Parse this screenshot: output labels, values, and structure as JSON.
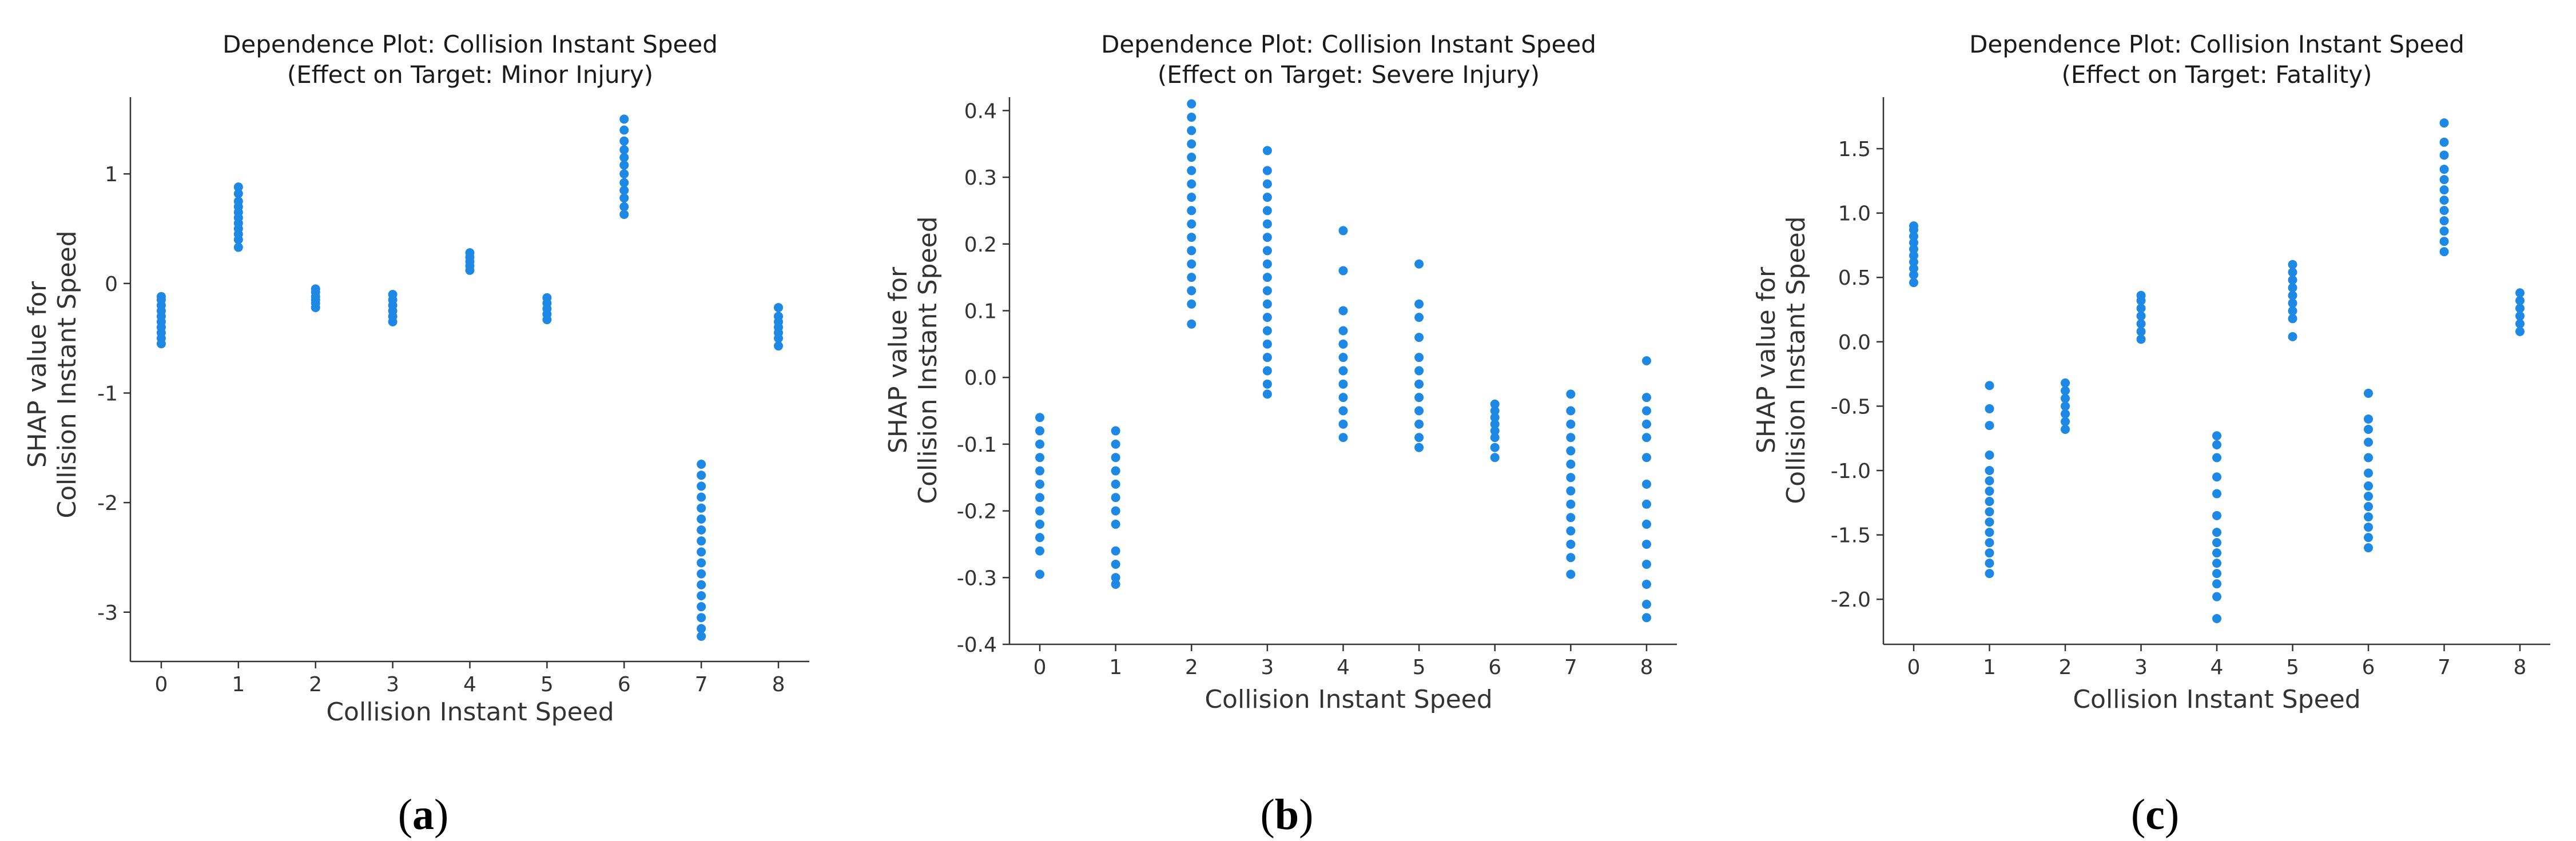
{
  "colors": {
    "point": "#1e88e5",
    "axis": "#333333"
  },
  "chart_data": [
    {
      "type": "scatter",
      "title_line1": "Dependence Plot: Collision Instant Speed",
      "title_line2": "(Effect on Target: Minor Injury)",
      "xlabel": "Collision Instant Speed",
      "ylabel_line1": "SHAP value for",
      "ylabel_line2": "Collision Instant Speed",
      "xlim": [
        -0.4,
        8.4
      ],
      "ylim": [
        -3.45,
        1.7
      ],
      "xticks": [
        0,
        1,
        2,
        3,
        4,
        5,
        6,
        7,
        8
      ],
      "yticks": [
        -3,
        -2,
        -1,
        0,
        1
      ],
      "caption_open": "(",
      "caption_letter": "a",
      "caption_close": ")",
      "clusters": [
        {
          "x": 0,
          "values": [
            -0.55,
            -0.5,
            -0.45,
            -0.4,
            -0.35,
            -0.3,
            -0.25,
            -0.2,
            -0.15,
            -0.12
          ]
        },
        {
          "x": 1,
          "values": [
            0.33,
            0.4,
            0.45,
            0.5,
            0.55,
            0.6,
            0.65,
            0.7,
            0.75,
            0.82,
            0.88
          ]
        },
        {
          "x": 2,
          "values": [
            -0.22,
            -0.18,
            -0.15,
            -0.12,
            -0.08,
            -0.05
          ]
        },
        {
          "x": 3,
          "values": [
            -0.35,
            -0.3,
            -0.25,
            -0.2,
            -0.15,
            -0.1
          ]
        },
        {
          "x": 4,
          "values": [
            0.12,
            0.16,
            0.2,
            0.24,
            0.28
          ]
        },
        {
          "x": 5,
          "values": [
            -0.33,
            -0.28,
            -0.23,
            -0.18,
            -0.13
          ]
        },
        {
          "x": 6,
          "values": [
            0.63,
            0.7,
            0.78,
            0.85,
            0.92,
            1.0,
            1.08,
            1.15,
            1.22,
            1.3,
            1.4,
            1.5
          ]
        },
        {
          "x": 7,
          "values": [
            -3.22,
            -3.15,
            -3.05,
            -2.95,
            -2.85,
            -2.75,
            -2.65,
            -2.55,
            -2.45,
            -2.35,
            -2.25,
            -2.15,
            -2.05,
            -1.95,
            -1.85,
            -1.75,
            -1.65
          ]
        },
        {
          "x": 8,
          "values": [
            -0.57,
            -0.5,
            -0.45,
            -0.4,
            -0.35,
            -0.3,
            -0.22
          ]
        }
      ]
    },
    {
      "type": "scatter",
      "title_line1": "Dependence Plot: Collision Instant Speed",
      "title_line2": "(Effect on Target: Severe Injury)",
      "xlabel": "Collision Instant Speed",
      "ylabel_line1": "SHAP value for",
      "ylabel_line2": "Collision Instant Speed",
      "xlim": [
        -0.4,
        8.4
      ],
      "ylim": [
        -0.4,
        0.42
      ],
      "xticks": [
        0,
        1,
        2,
        3,
        4,
        5,
        6,
        7,
        8
      ],
      "yticks": [
        -0.4,
        -0.3,
        -0.2,
        -0.1,
        0.0,
        0.1,
        0.2,
        0.3,
        0.4
      ],
      "ytick_labels": [
        "-0.4",
        "-0.3",
        "-0.2",
        "-0.1",
        "0.0",
        "0.1",
        "0.2",
        "0.3",
        "0.4"
      ],
      "caption_open": "(",
      "caption_letter": "b",
      "caption_close": ")",
      "clusters": [
        {
          "x": 0,
          "values": [
            -0.295,
            -0.26,
            -0.24,
            -0.22,
            -0.2,
            -0.18,
            -0.16,
            -0.14,
            -0.12,
            -0.1,
            -0.08,
            -0.06
          ]
        },
        {
          "x": 1,
          "values": [
            -0.31,
            -0.3,
            -0.28,
            -0.26,
            -0.22,
            -0.2,
            -0.18,
            -0.16,
            -0.14,
            -0.12,
            -0.1,
            -0.08
          ]
        },
        {
          "x": 2,
          "values": [
            0.08,
            0.11,
            0.13,
            0.15,
            0.17,
            0.19,
            0.21,
            0.23,
            0.25,
            0.27,
            0.29,
            0.31,
            0.33,
            0.35,
            0.37,
            0.39,
            0.41
          ]
        },
        {
          "x": 3,
          "values": [
            -0.025,
            -0.01,
            0.01,
            0.03,
            0.05,
            0.07,
            0.09,
            0.11,
            0.13,
            0.15,
            0.17,
            0.19,
            0.21,
            0.23,
            0.25,
            0.27,
            0.29,
            0.31,
            0.34
          ]
        },
        {
          "x": 4,
          "values": [
            -0.09,
            -0.07,
            -0.05,
            -0.03,
            -0.01,
            0.01,
            0.03,
            0.05,
            0.07,
            0.1,
            0.16,
            0.22
          ]
        },
        {
          "x": 5,
          "values": [
            -0.105,
            -0.09,
            -0.07,
            -0.05,
            -0.03,
            -0.01,
            0.01,
            0.03,
            0.06,
            0.09,
            0.11,
            0.17
          ]
        },
        {
          "x": 6,
          "values": [
            -0.12,
            -0.105,
            -0.09,
            -0.08,
            -0.07,
            -0.06,
            -0.05,
            -0.04
          ]
        },
        {
          "x": 7,
          "values": [
            -0.295,
            -0.27,
            -0.25,
            -0.23,
            -0.21,
            -0.19,
            -0.17,
            -0.15,
            -0.13,
            -0.11,
            -0.09,
            -0.07,
            -0.05,
            -0.025
          ]
        },
        {
          "x": 8,
          "values": [
            -0.36,
            -0.34,
            -0.31,
            -0.28,
            -0.25,
            -0.22,
            -0.19,
            -0.16,
            -0.12,
            -0.09,
            -0.07,
            -0.05,
            -0.03,
            0.025
          ]
        }
      ]
    },
    {
      "type": "scatter",
      "title_line1": "Dependence Plot: Collision Instant Speed",
      "title_line2": "(Effect on Target: Fatality)",
      "xlabel": "Collision Instant Speed",
      "ylabel_line1": "SHAP value for",
      "ylabel_line2": "Collision Instant Speed",
      "xlim": [
        -0.4,
        8.4
      ],
      "ylim": [
        -2.35,
        1.9
      ],
      "xticks": [
        0,
        1,
        2,
        3,
        4,
        5,
        6,
        7,
        8
      ],
      "yticks": [
        -2.0,
        -1.5,
        -1.0,
        -0.5,
        0.0,
        0.5,
        1.0,
        1.5
      ],
      "ytick_labels": [
        "-2.0",
        "-1.5",
        "-1.0",
        "-0.5",
        "0.0",
        "0.5",
        "1.0",
        "1.5"
      ],
      "caption_open": "(",
      "caption_letter": "c",
      "caption_close": ")",
      "clusters": [
        {
          "x": 0,
          "values": [
            0.46,
            0.52,
            0.57,
            0.62,
            0.67,
            0.72,
            0.77,
            0.82,
            0.87,
            0.9
          ]
        },
        {
          "x": 1,
          "values": [
            -1.8,
            -1.72,
            -1.64,
            -1.56,
            -1.48,
            -1.4,
            -1.32,
            -1.24,
            -1.16,
            -1.08,
            -1.0,
            -0.88,
            -0.65,
            -0.52,
            -0.34
          ]
        },
        {
          "x": 2,
          "values": [
            -0.68,
            -0.62,
            -0.56,
            -0.5,
            -0.44,
            -0.38,
            -0.32
          ]
        },
        {
          "x": 3,
          "values": [
            0.02,
            0.08,
            0.14,
            0.2,
            0.26,
            0.32,
            0.36
          ]
        },
        {
          "x": 4,
          "values": [
            -2.15,
            -1.98,
            -1.88,
            -1.8,
            -1.72,
            -1.64,
            -1.56,
            -1.48,
            -1.35,
            -1.18,
            -1.05,
            -0.9,
            -0.8,
            -0.73
          ]
        },
        {
          "x": 5,
          "values": [
            0.04,
            0.18,
            0.24,
            0.3,
            0.36,
            0.42,
            0.48,
            0.54,
            0.6
          ]
        },
        {
          "x": 6,
          "values": [
            -1.6,
            -1.52,
            -1.44,
            -1.36,
            -1.28,
            -1.2,
            -1.12,
            -1.02,
            -0.9,
            -0.78,
            -0.68,
            -0.6,
            -0.4
          ]
        },
        {
          "x": 7,
          "values": [
            0.7,
            0.78,
            0.86,
            0.94,
            1.02,
            1.1,
            1.18,
            1.26,
            1.34,
            1.45,
            1.55,
            1.7
          ]
        },
        {
          "x": 8,
          "values": [
            0.08,
            0.14,
            0.2,
            0.26,
            0.32,
            0.38
          ]
        }
      ]
    }
  ]
}
